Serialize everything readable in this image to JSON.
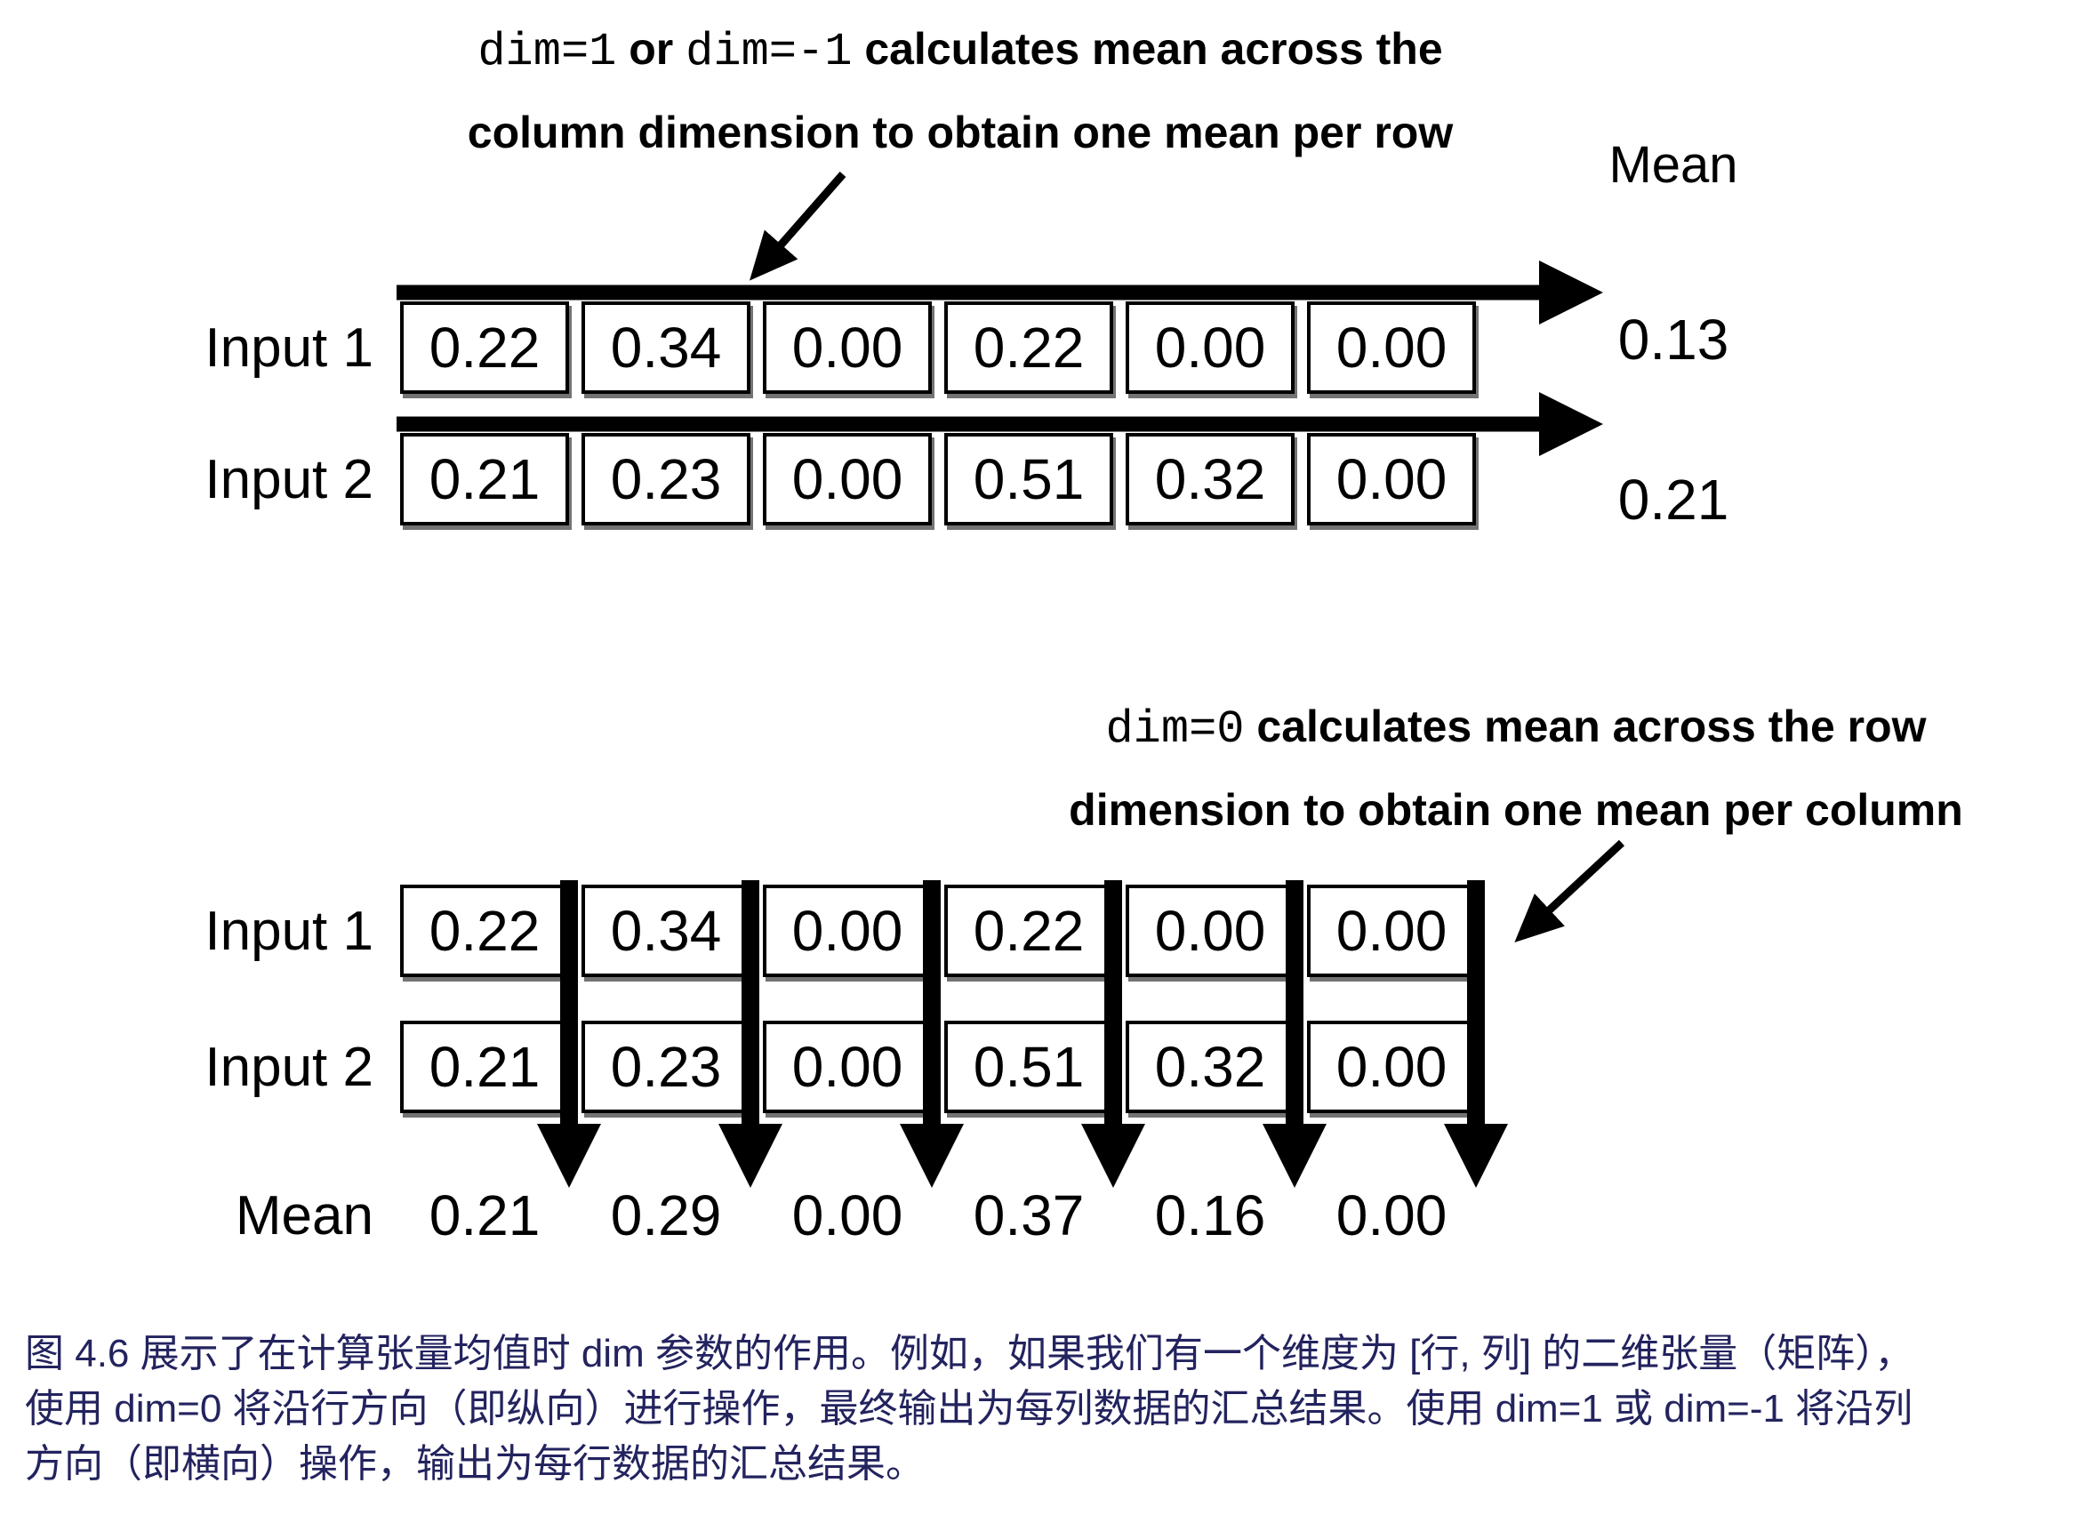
{
  "colors": {
    "ink": "#000000",
    "caption_text": "#23235f",
    "background": "#ffffff"
  },
  "top_section": {
    "annotation": {
      "code_1": "dim=1",
      "conj": "or",
      "code_2": "dim=-1",
      "bold_tail": "calculates mean across the",
      "line_2": "column dimension to obtain one mean per row"
    },
    "mean_header": "Mean",
    "rows": [
      {
        "label": "Input 1",
        "values": [
          "0.22",
          "0.34",
          "0.00",
          "0.22",
          "0.00",
          "0.00"
        ],
        "mean": "0.13"
      },
      {
        "label": "Input 2",
        "values": [
          "0.21",
          "0.23",
          "0.00",
          "0.51",
          "0.32",
          "0.00"
        ],
        "mean": "0.21"
      }
    ]
  },
  "bottom_section": {
    "annotation": {
      "code_1": "dim=0",
      "bold_tail": "calculates mean across the row",
      "line_2": "dimension to obtain one mean per column"
    },
    "rows": [
      {
        "label": "Input 1",
        "values": [
          "0.22",
          "0.34",
          "0.00",
          "0.22",
          "0.00",
          "0.00"
        ]
      },
      {
        "label": "Input 2",
        "values": [
          "0.21",
          "0.23",
          "0.00",
          "0.51",
          "0.32",
          "0.00"
        ]
      }
    ],
    "mean_row": {
      "label": "Mean",
      "values": [
        "0.21",
        "0.29",
        "0.00",
        "0.37",
        "0.16",
        "0.00"
      ]
    }
  },
  "caption": {
    "lines": [
      "图 4.6 展示了在计算张量均值时 dim 参数的作用。例如，如果我们有一个维度为 [行, 列] 的二维张量（矩阵），",
      "使用 dim=0 将沿行方向（即纵向）进行操作，最终输出为每列数据的汇总结果。使用 dim=1 或 dim=-1 将沿列",
      "方向（即横向）操作，输出为每行数据的汇总结果。"
    ]
  }
}
